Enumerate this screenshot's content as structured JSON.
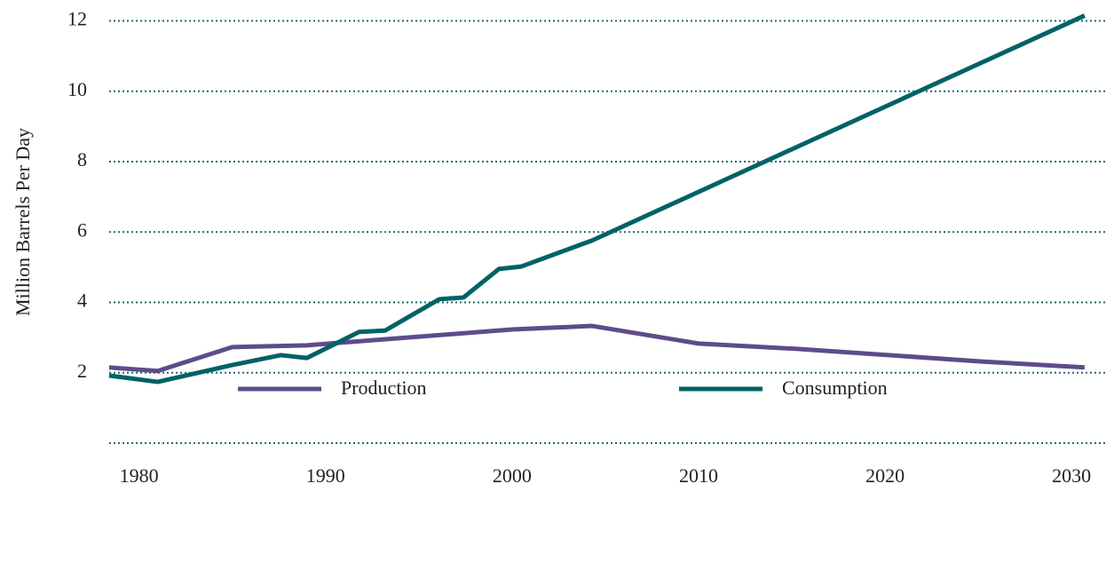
{
  "chart_data": {
    "type": "line",
    "ylabel": "Million Barrels Per Day",
    "xlim": [
      1978.4,
      2031.8
    ],
    "xticks": [
      1980,
      1990,
      2000,
      2010,
      2020,
      2030
    ],
    "ylim": [
      0,
      12
    ],
    "yticks": [
      2,
      4,
      6,
      8,
      10,
      12
    ],
    "grid": true,
    "legend": "bottom",
    "series": [
      {
        "name": "Production",
        "color": "#5e4b8b",
        "x": [
          1978.4,
          1981,
          1985,
          1989,
          2000,
          2004.3,
          2010,
          2015.2,
          2025.2,
          2030.7
        ],
        "values": [
          2.15,
          2.05,
          2.73,
          2.78,
          3.23,
          3.33,
          2.83,
          2.68,
          2.32,
          2.15
        ]
      },
      {
        "name": "Consumption",
        "color": "#006266",
        "x": [
          1978.4,
          1981,
          1985,
          1987.6,
          1989,
          1991.8,
          1993.2,
          1996.1,
          1997.4,
          1999.3,
          2000.5,
          2004.3,
          2030.7
        ],
        "values": [
          1.92,
          1.74,
          2.22,
          2.5,
          2.42,
          3.16,
          3.2,
          4.09,
          4.14,
          4.95,
          5.02,
          5.76,
          12.15
        ]
      }
    ]
  }
}
